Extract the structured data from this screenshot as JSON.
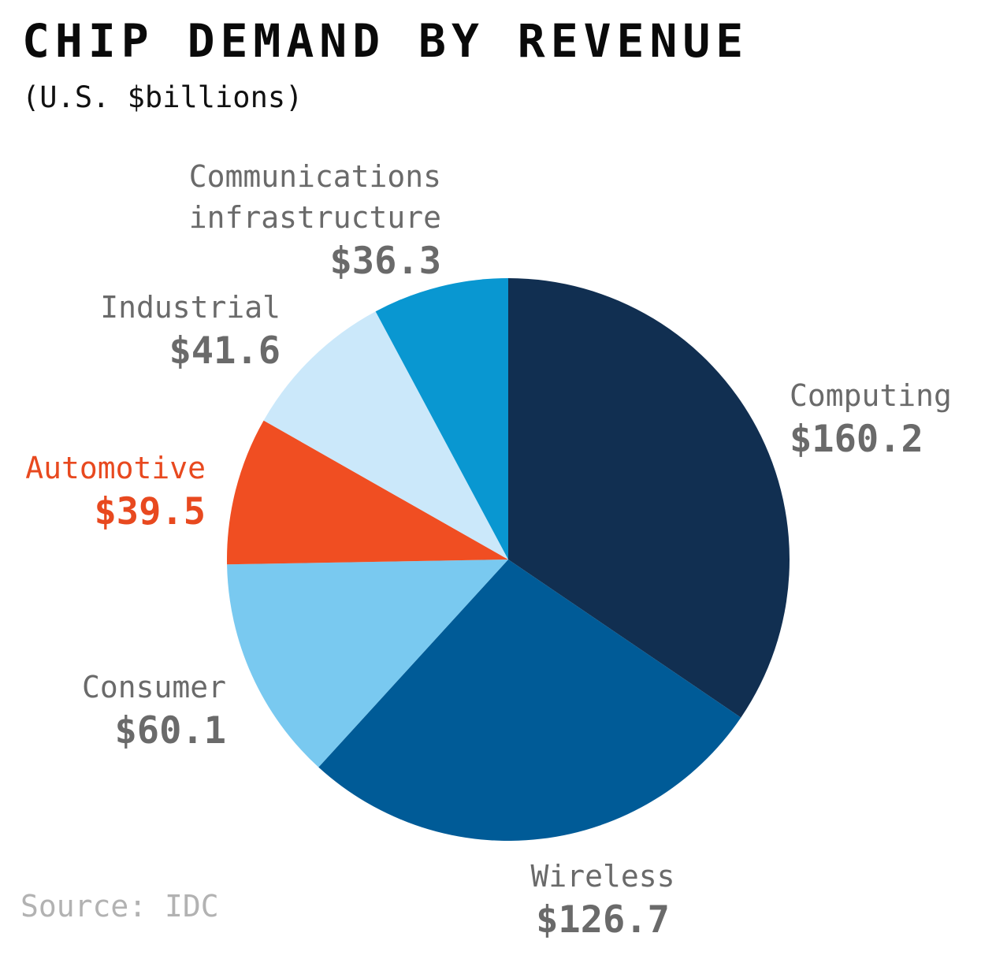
{
  "title": "CHIP DEMAND BY REVENUE",
  "subtitle": "(U.S. $billions)",
  "source": "Source: IDC",
  "colors": {
    "title_text": "#0a0a0a",
    "label_text": "#6a6a6a",
    "accent_orange": "#e8491f",
    "source_text": "#b2b2b2",
    "background": "#ffffff"
  },
  "chart_data": {
    "type": "pie",
    "title": "CHIP DEMAND BY REVENUE",
    "subtitle": "(U.S. $billions)",
    "units": "U.S. $billions",
    "start_angle_deg": 0,
    "direction": "clockwise",
    "legend_position": "labels-around-pie",
    "slices": [
      {
        "label": "Computing",
        "value": 160.2,
        "display_value": "$160.2",
        "color": "#112f51",
        "label_color": "#6a6a6a"
      },
      {
        "label": "Wireless",
        "value": 126.7,
        "display_value": "$126.7",
        "color": "#005b97",
        "label_color": "#6a6a6a"
      },
      {
        "label": "Consumer",
        "value": 60.1,
        "display_value": "$60.1",
        "color": "#79c9f0",
        "label_color": "#6a6a6a"
      },
      {
        "label": "Automotive",
        "value": 39.5,
        "display_value": "$39.5",
        "color": "#f04e22",
        "label_color": "#e8491f"
      },
      {
        "label": "Industrial",
        "value": 41.6,
        "display_value": "$41.6",
        "color": "#cbe8fa",
        "label_color": "#6a6a6a"
      },
      {
        "label": "Communications infrastructure",
        "value": 36.3,
        "display_value": "$36.3",
        "color": "#0997d1",
        "label_color": "#6a6a6a"
      }
    ]
  }
}
